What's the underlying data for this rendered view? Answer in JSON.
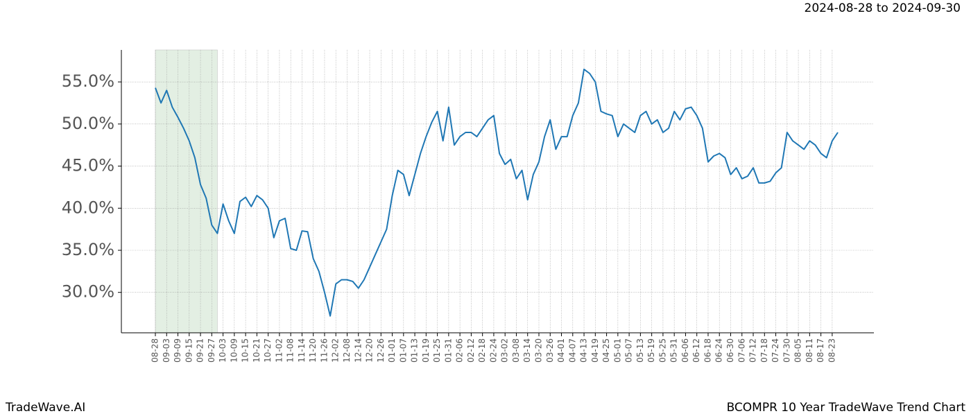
{
  "chart_data": {
    "type": "line",
    "title": "2024-08-28 to 2024-09-30",
    "footer_left": "TradeWave.AI",
    "footer_right": "BCOMPR 10 Year TradeWave Trend Chart",
    "categories": [
      "08-28",
      null,
      "09-03",
      null,
      "09-09",
      null,
      "09-15",
      null,
      "09-21",
      null,
      "09-27",
      null,
      "10-03",
      null,
      "10-09",
      null,
      "10-15",
      null,
      "10-21",
      null,
      "10-27",
      null,
      "11-02",
      null,
      "11-08",
      null,
      "11-14",
      null,
      "11-20",
      null,
      "11-26",
      null,
      "12-02",
      null,
      "12-08",
      null,
      "12-14",
      null,
      "12-20",
      null,
      "12-26",
      null,
      "01-01",
      null,
      "01-07",
      null,
      "01-13",
      null,
      "01-19",
      null,
      "01-25",
      null,
      "01-31",
      null,
      "02-06",
      null,
      "02-12",
      null,
      "02-18",
      null,
      "02-24",
      null,
      "03-02",
      null,
      "03-08",
      null,
      "03-14",
      null,
      "03-20",
      null,
      "03-26",
      null,
      "04-01",
      null,
      "04-07",
      null,
      "04-13",
      null,
      "04-19",
      null,
      "04-25",
      null,
      "05-01",
      null,
      "05-07",
      null,
      "05-13",
      null,
      "05-19",
      null,
      "05-25",
      null,
      "05-31",
      null,
      "06-06",
      null,
      "06-12",
      null,
      "06-18",
      null,
      "06-24",
      null,
      "06-30",
      null,
      "07-06",
      null,
      "07-12",
      null,
      "07-18",
      null,
      "07-24",
      null,
      "07-30",
      null,
      "08-05",
      null,
      "08-11",
      null,
      "08-17",
      null,
      "08-23",
      null
    ],
    "values": [
      54.3,
      52.5,
      54.0,
      52.0,
      50.8,
      49.5,
      48.0,
      46.0,
      42.8,
      41.2,
      38.0,
      37.0,
      40.5,
      38.5,
      37.0,
      40.8,
      41.3,
      40.2,
      41.5,
      41.0,
      40.0,
      36.5,
      38.5,
      38.8,
      35.2,
      35.0,
      37.3,
      37.2,
      34.0,
      32.5,
      30.0,
      27.2,
      31.0,
      31.5,
      31.5,
      31.3,
      30.5,
      31.5,
      33.0,
      34.5,
      36.0,
      37.5,
      41.5,
      44.5,
      44.0,
      41.5,
      44.0,
      46.5,
      48.5,
      50.2,
      51.5,
      48.0,
      52.0,
      47.5,
      48.5,
      49.0,
      49.0,
      48.5,
      49.5,
      50.5,
      51.0,
      46.5,
      45.2,
      45.8,
      43.5,
      44.5,
      41.0,
      44.0,
      45.5,
      48.5,
      50.5,
      47.0,
      48.5,
      48.5,
      51.0,
      52.5,
      56.5,
      56.0,
      55.0,
      51.5,
      51.2,
      51.0,
      48.5,
      50.0,
      49.5,
      49.0,
      51.0,
      51.5,
      50.0,
      50.5,
      49.0,
      49.5,
      51.5,
      50.5,
      51.8,
      52.0,
      51.0,
      49.5,
      45.5,
      46.2,
      46.5,
      46.0,
      44.0,
      44.8,
      43.5,
      43.8,
      44.8,
      43.0,
      43.0,
      43.2,
      44.2,
      44.8,
      49.0,
      48.0,
      47.5,
      47.0,
      48.0,
      47.5,
      46.5,
      46.0,
      48.0,
      49.0
    ],
    "color": "#1f77b4",
    "shade_color": "#c8e0c8",
    "shade_index": [
      0,
      11
    ],
    "ylim": [
      25.2,
      58.8
    ],
    "yticks": [
      {
        "value": 30,
        "label": "30.0%"
      },
      {
        "value": 35,
        "label": "35.0%"
      },
      {
        "value": 40,
        "label": "40.0%"
      },
      {
        "value": 45,
        "label": "45.0%"
      },
      {
        "value": 50,
        "label": "50.0%"
      },
      {
        "value": 55,
        "label": "55.0%"
      }
    ],
    "grid": true
  }
}
